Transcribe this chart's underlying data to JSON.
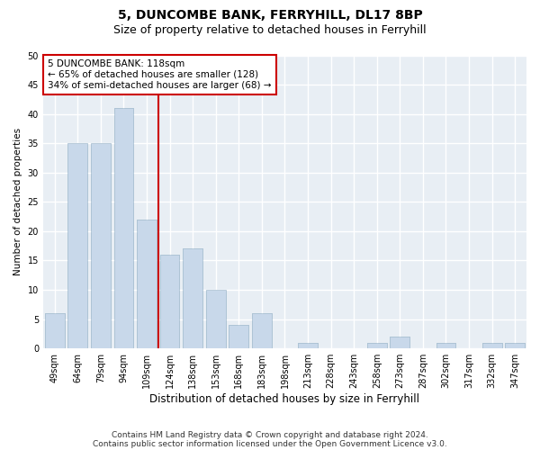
{
  "title1": "5, DUNCOMBE BANK, FERRYHILL, DL17 8BP",
  "title2": "Size of property relative to detached houses in Ferryhill",
  "xlabel": "Distribution of detached houses by size in Ferryhill",
  "ylabel": "Number of detached properties",
  "categories": [
    "49sqm",
    "64sqm",
    "79sqm",
    "94sqm",
    "109sqm",
    "124sqm",
    "138sqm",
    "153sqm",
    "168sqm",
    "183sqm",
    "198sqm",
    "213sqm",
    "228sqm",
    "243sqm",
    "258sqm",
    "273sqm",
    "287sqm",
    "302sqm",
    "317sqm",
    "332sqm",
    "347sqm"
  ],
  "values": [
    6,
    35,
    35,
    41,
    22,
    16,
    17,
    10,
    4,
    6,
    0,
    1,
    0,
    0,
    1,
    2,
    0,
    1,
    0,
    1,
    1
  ],
  "bar_color": "#c8d8ea",
  "bar_edge_color": "#a8bfd0",
  "vline_x": 4.5,
  "vline_color": "#cc0000",
  "annotation_box_text": "5 DUNCOMBE BANK: 118sqm\n← 65% of detached houses are smaller (128)\n34% of semi-detached houses are larger (68) →",
  "ylim": [
    0,
    50
  ],
  "yticks": [
    0,
    5,
    10,
    15,
    20,
    25,
    30,
    35,
    40,
    45,
    50
  ],
  "footer1": "Contains HM Land Registry data © Crown copyright and database right 2024.",
  "footer2": "Contains public sector information licensed under the Open Government Licence v3.0.",
  "bg_color": "#e8eef4",
  "grid_color": "#ffffff",
  "fig_bg_color": "#ffffff",
  "title1_fontsize": 10,
  "title2_fontsize": 9,
  "xlabel_fontsize": 8.5,
  "ylabel_fontsize": 7.5,
  "tick_fontsize": 7,
  "annot_fontsize": 7.5,
  "footer_fontsize": 6.5
}
